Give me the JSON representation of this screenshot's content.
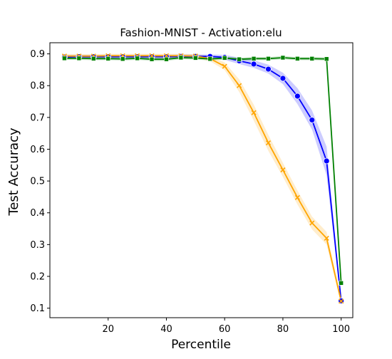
{
  "chart_data": {
    "type": "line",
    "title": "Fashion-MNIST - Activation:elu",
    "xlabel": "Percentile",
    "ylabel": "Test Accuracy",
    "xlim": [
      0,
      104
    ],
    "ylim": [
      0.07,
      0.935
    ],
    "xticks": [
      20,
      40,
      60,
      80,
      100
    ],
    "xtick_labels": [
      "20",
      "40",
      "60",
      "80",
      "100"
    ],
    "yticks": [
      0.1,
      0.2,
      0.3,
      0.4,
      0.5,
      0.6,
      0.7,
      0.8,
      0.9
    ],
    "ytick_labels": [
      "0.1",
      "0.2",
      "0.3",
      "0.4",
      "0.5",
      "0.6",
      "0.7",
      "0.8",
      "0.9"
    ],
    "grid": false,
    "legend": "none",
    "x": [
      5,
      10,
      15,
      20,
      25,
      30,
      35,
      40,
      45,
      50,
      55,
      60,
      65,
      70,
      75,
      80,
      85,
      90,
      95,
      100
    ],
    "series": [
      {
        "color": "#0000ff",
        "fill_color": "#0000ff",
        "marker": "circle",
        "values": [
          0.89,
          0.891,
          0.891,
          0.891,
          0.891,
          0.891,
          0.891,
          0.891,
          0.892,
          0.892,
          0.892,
          0.889,
          0.878,
          0.868,
          0.852,
          0.823,
          0.767,
          0.692,
          0.563,
          0.123
        ],
        "band": [
          0.006,
          0.006,
          0.006,
          0.006,
          0.006,
          0.006,
          0.006,
          0.006,
          0.006,
          0.006,
          0.006,
          0.008,
          0.01,
          0.012,
          0.014,
          0.018,
          0.025,
          0.03,
          0.045,
          0.01
        ]
      },
      {
        "color": "#ffa500",
        "fill_color": "#ffa500",
        "marker": "x",
        "values": [
          0.893,
          0.893,
          0.893,
          0.894,
          0.894,
          0.894,
          0.894,
          0.894,
          0.894,
          0.893,
          0.885,
          0.861,
          0.8,
          0.715,
          0.62,
          0.535,
          0.448,
          0.368,
          0.32,
          0.122
        ],
        "band": [
          0.006,
          0.006,
          0.006,
          0.006,
          0.006,
          0.006,
          0.006,
          0.006,
          0.006,
          0.006,
          0.008,
          0.012,
          0.02,
          0.025,
          0.025,
          0.022,
          0.022,
          0.02,
          0.02,
          0.01
        ]
      },
      {
        "color": "#008000",
        "fill_color": "#008000",
        "marker": "square",
        "values": [
          0.886,
          0.886,
          0.885,
          0.885,
          0.884,
          0.886,
          0.883,
          0.883,
          0.888,
          0.887,
          0.884,
          0.887,
          0.883,
          0.885,
          0.885,
          0.888,
          0.885,
          0.885,
          0.884,
          0.179
        ],
        "band": [
          0.005,
          0.005,
          0.005,
          0.005,
          0.005,
          0.005,
          0.005,
          0.005,
          0.005,
          0.005,
          0.005,
          0.005,
          0.005,
          0.005,
          0.005,
          0.005,
          0.005,
          0.005,
          0.005,
          0.005
        ]
      }
    ]
  }
}
